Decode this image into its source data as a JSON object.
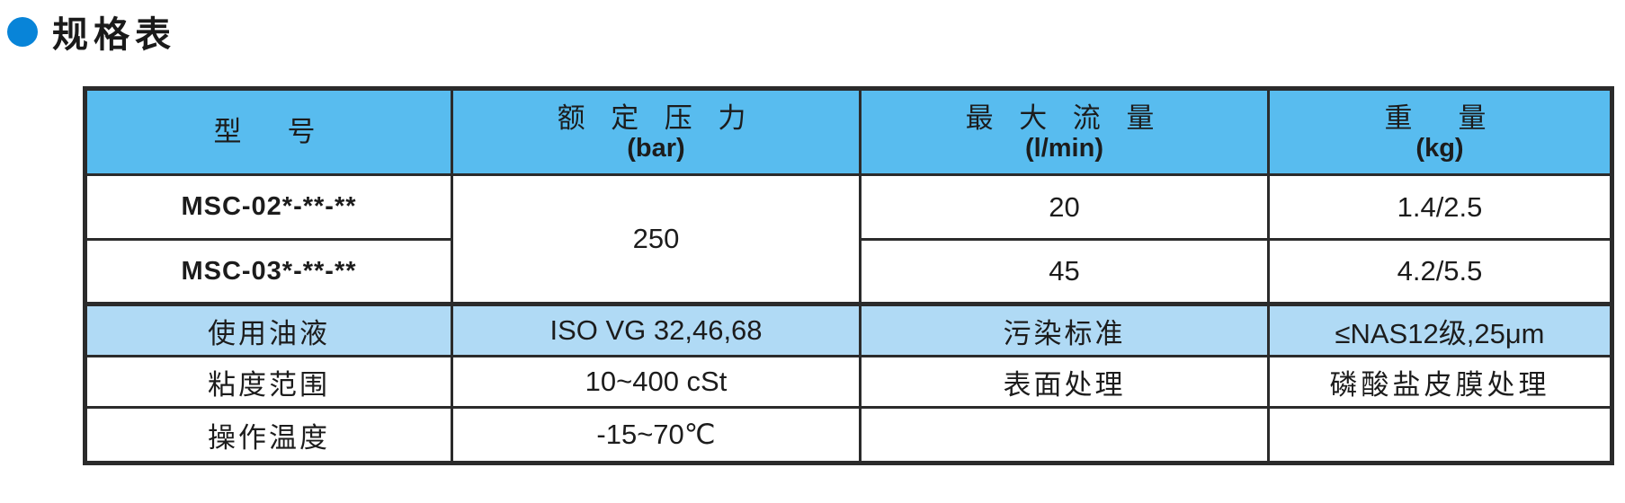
{
  "title": {
    "text": "规格表",
    "bullet_color": "#0884d8"
  },
  "colors": {
    "header_bg": "#58bcef",
    "highlight_row_bg": "#b0daf5",
    "border": "#2b2b2b",
    "text": "#1c1c1c"
  },
  "table": {
    "headers": [
      {
        "name": "型　号",
        "unit": ""
      },
      {
        "name": "额 定 压 力",
        "unit": "(bar)"
      },
      {
        "name": "最 大 流 量",
        "unit": "(l/min)"
      },
      {
        "name": "重　量",
        "unit": "(kg)"
      }
    ],
    "rated_pressure": "250",
    "model_rows": [
      {
        "model": "MSC-02*-**-**",
        "max_flow": "20",
        "weight": "1.4/2.5"
      },
      {
        "model": "MSC-03*-**-**",
        "max_flow": "45",
        "weight": "4.2/5.5"
      }
    ],
    "spec_rows": [
      {
        "label_left": "使用油液",
        "value_left": "ISO VG 32,46,68",
        "label_right": "污染标准",
        "value_right": "≤NAS12级,25μm"
      },
      {
        "label_left": "粘度范围",
        "value_left": "10~400 cSt",
        "label_right": "表面处理",
        "value_right": "磷酸盐皮膜处理"
      },
      {
        "label_left": "操作温度",
        "value_left": "-15~70℃",
        "label_right": "",
        "value_right": ""
      }
    ]
  }
}
